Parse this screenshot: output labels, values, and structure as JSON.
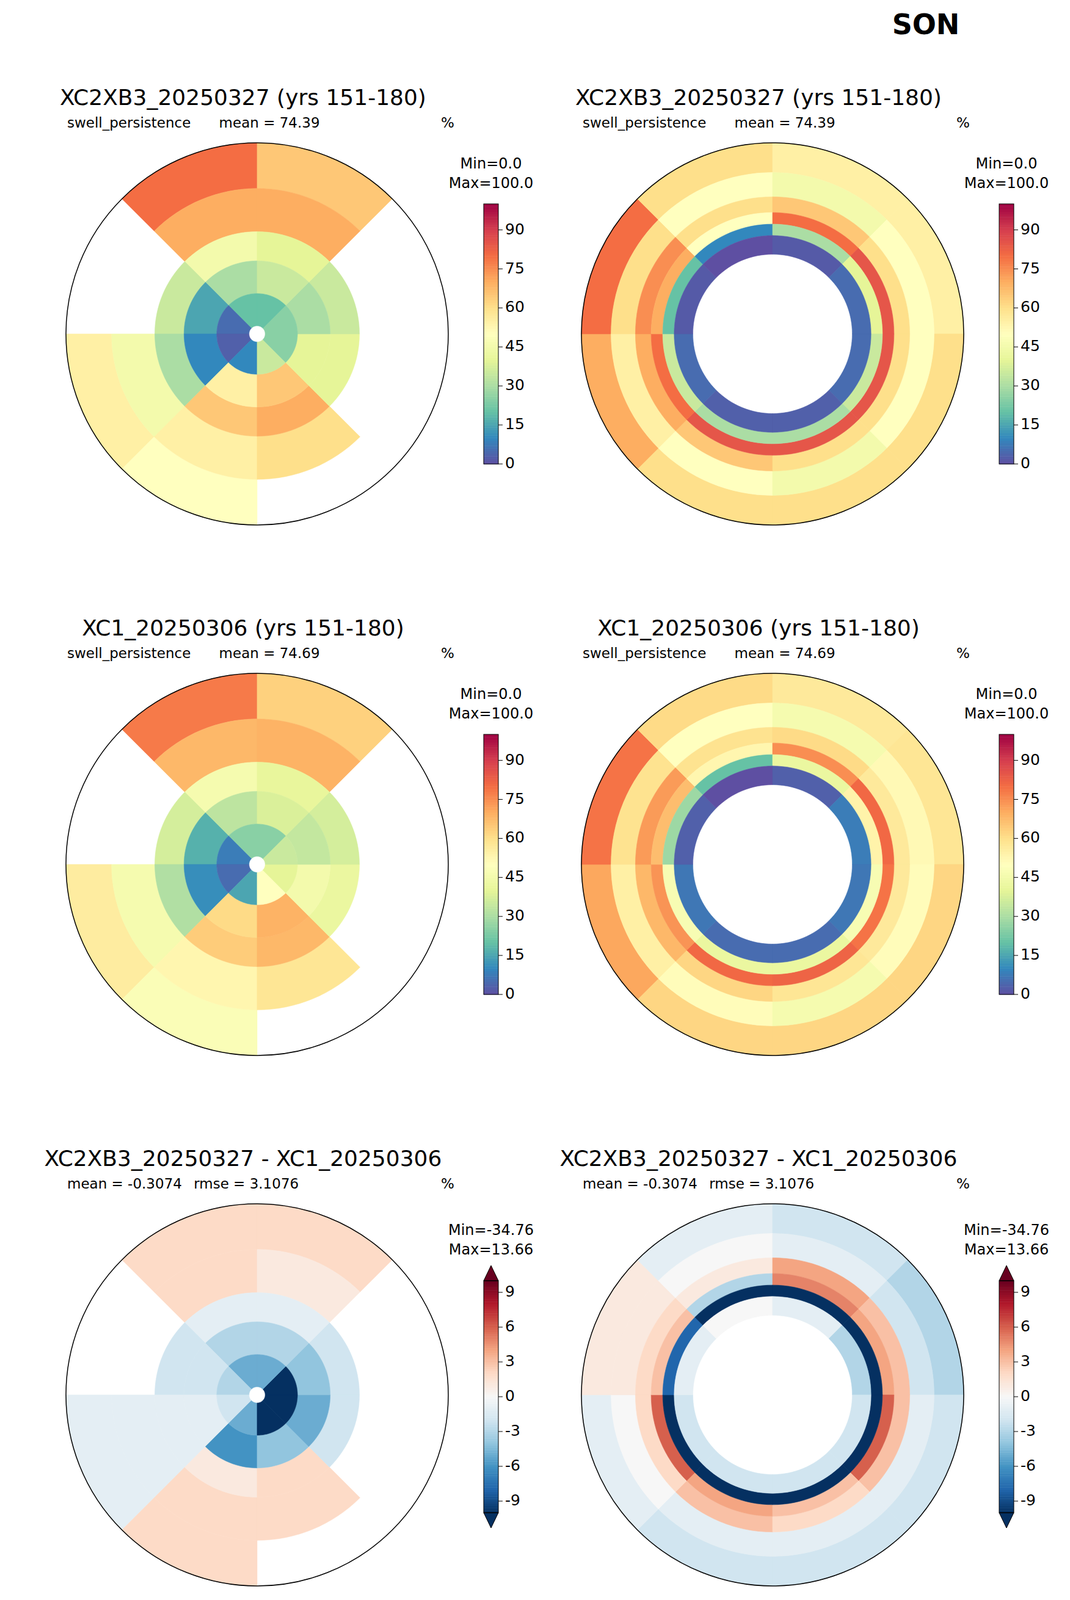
{
  "title": "SON",
  "chart_data": [
    {
      "type": "polar_map",
      "title": "XC2XB3_20250327 (yrs 151-180)",
      "variable": "swell_persistence",
      "stats": [
        "mean = 74.39"
      ],
      "units": "%",
      "colorbar": {
        "min_label": "Min=0.0",
        "max_label": "Max=100.0",
        "range": [
          0,
          100
        ],
        "ticks": [
          0,
          15,
          30,
          45,
          60,
          75,
          90
        ]
      },
      "lat_edges": [
        45,
        55,
        65,
        72,
        80,
        88,
        90
      ],
      "lon_edges": [
        -180,
        -135,
        -90,
        -45,
        0,
        45,
        90,
        135,
        180
      ],
      "values": [
        [
          80,
          null,
          55,
          50,
          null,
          null,
          null,
          65
        ],
        [
          70,
          null,
          45,
          55,
          60,
          null,
          null,
          70
        ],
        [
          45,
          35,
          30,
          65,
          70,
          40,
          35,
          40
        ],
        [
          30,
          15,
          10,
          55,
          65,
          40,
          30,
          35
        ],
        [
          20,
          5,
          3,
          10,
          35,
          25,
          25,
          20
        ],
        [
          null,
          null,
          null,
          null,
          null,
          null,
          null,
          null
        ]
      ]
    },
    {
      "type": "polar_map",
      "title": "XC2XB3_20250327 (yrs 151-180)",
      "variable": "swell_persistence",
      "stats": [
        "mean = 74.39"
      ],
      "units": "%",
      "colorbar": {
        "min_label": "Min=0.0",
        "max_label": "Max=100.0",
        "range": [
          0,
          100
        ],
        "ticks": [
          0,
          15,
          30,
          45,
          60,
          75,
          90
        ]
      },
      "lat_edges": [
        -40,
        -47,
        -53,
        -57,
        -60,
        -63,
        -68,
        -90
      ],
      "lon_edges": [
        -180,
        -135,
        -90,
        -45,
        0,
        45,
        90,
        135,
        180
      ],
      "values": [
        [
          60,
          70,
          80,
          60,
          55,
          55,
          60,
          60
        ],
        [
          50,
          55,
          60,
          50,
          45,
          50,
          50,
          45
        ],
        [
          65,
          70,
          75,
          60,
          65,
          60,
          60,
          60
        ],
        [
          85,
          80,
          70,
          50,
          80,
          85,
          85,
          85
        ],
        [
          30,
          35,
          20,
          10,
          30,
          40,
          35,
          30
        ],
        [
          3,
          5,
          2,
          0,
          2,
          5,
          5,
          3
        ],
        [
          null,
          null,
          null,
          null,
          null,
          null,
          null,
          null
        ]
      ]
    },
    {
      "type": "polar_map",
      "title": "XC1_20250306 (yrs 151-180)",
      "variable": "swell_persistence",
      "stats": [
        "mean = 74.69"
      ],
      "units": "%",
      "colorbar": {
        "min_label": "Min=0.0",
        "max_label": "Max=100.0",
        "range": [
          0,
          100
        ],
        "ticks": [
          0,
          15,
          30,
          45,
          60,
          75,
          90
        ]
      },
      "lat_edges": [
        45,
        55,
        65,
        72,
        80,
        88,
        90
      ],
      "lon_edges": [
        -180,
        -135,
        -90,
        -45,
        0,
        45,
        90,
        135,
        180
      ],
      "values": [
        [
          78,
          null,
          56,
          48,
          null,
          null,
          null,
          63
        ],
        [
          68,
          null,
          46,
          53,
          58,
          null,
          null,
          69
        ],
        [
          46,
          37,
          31,
          64,
          68,
          42,
          37,
          41
        ],
        [
          33,
          17,
          11,
          61,
          69,
          45,
          34,
          38
        ],
        [
          25,
          8,
          5,
          15,
          50,
          40,
          35,
          25
        ],
        [
          null,
          null,
          null,
          null,
          null,
          null,
          null,
          null
        ]
      ]
    },
    {
      "type": "polar_map",
      "title": "XC1_20250306 (yrs 151-180)",
      "variable": "swell_persistence",
      "stats": [
        "mean = 74.69"
      ],
      "units": "%",
      "colorbar": {
        "min_label": "Min=0.0",
        "max_label": "Max=100.0",
        "range": [
          0,
          100
        ],
        "ticks": [
          0,
          15,
          30,
          45,
          60,
          75,
          90
        ]
      },
      "lat_edges": [
        -40,
        -47,
        -53,
        -57,
        -60,
        -63,
        -68,
        -90
      ],
      "lon_edges": [
        -180,
        -135,
        -90,
        -45,
        0,
        45,
        90,
        135,
        180
      ],
      "values": [
        [
          62,
          71,
          79,
          61,
          57,
          58,
          62,
          62
        ],
        [
          51,
          55,
          59,
          50,
          46,
          52,
          51,
          46
        ],
        [
          62,
          68,
          73,
          59,
          61,
          57,
          57,
          58
        ],
        [
          81,
          74,
          67,
          53,
          75,
          81,
          79,
          82
        ],
        [
          42,
          47,
          28,
          20,
          42,
          54,
          47,
          42
        ],
        [
          5,
          7,
          3,
          0,
          3,
          8,
          7,
          5
        ],
        [
          null,
          null,
          null,
          null,
          null,
          null,
          null,
          null
        ]
      ]
    },
    {
      "type": "difference_map",
      "title": "XC2XB3_20250327 - XC1_20250306",
      "stats": [
        "mean = -0.3074",
        "rmse = 3.1076"
      ],
      "units": "%",
      "colorbar": {
        "min_label": "Min=-34.76",
        "max_label": "Max=13.66",
        "range": [
          -10,
          10
        ],
        "ticks": [
          -9,
          -6,
          -3,
          0,
          3,
          6,
          9
        ]
      },
      "lat_edges": [
        45,
        55,
        65,
        72,
        80,
        88,
        90
      ],
      "lon_edges": [
        -180,
        -135,
        -90,
        -45,
        0,
        45,
        90,
        135,
        180
      ],
      "values": [
        [
          2,
          null,
          -1,
          2,
          null,
          null,
          null,
          2
        ],
        [
          2,
          null,
          -1,
          2,
          2,
          null,
          null,
          1
        ],
        [
          -1,
          -2,
          -1,
          1,
          2,
          -2,
          -2,
          -1
        ],
        [
          -3,
          -2,
          -1,
          -6,
          -4,
          -5,
          -4,
          -3
        ],
        [
          -5,
          -3,
          -2,
          -5,
          -15,
          -15,
          -10,
          -5
        ],
        [
          null,
          null,
          null,
          null,
          null,
          null,
          null,
          null
        ]
      ]
    },
    {
      "type": "difference_map",
      "title": "XC2XB3_20250327 - XC1_20250306",
      "stats": [
        "mean = -0.3074",
        "rmse = 3.1076"
      ],
      "units": "%",
      "colorbar": {
        "min_label": "Min=-34.76",
        "max_label": "Max=13.66",
        "range": [
          -10,
          10
        ],
        "ticks": [
          -9,
          -6,
          -3,
          0,
          3,
          6,
          9
        ]
      },
      "lat_edges": [
        -40,
        -47,
        -53,
        -57,
        -60,
        -63,
        -68,
        -90
      ],
      "lon_edges": [
        -180,
        -135,
        -90,
        -45,
        0,
        45,
        90,
        135,
        180
      ],
      "values": [
        [
          -2,
          -1,
          1,
          -1,
          -2,
          -3,
          -2,
          -2
        ],
        [
          -1,
          0,
          1,
          0,
          -1,
          -2,
          -1,
          -1
        ],
        [
          3,
          2,
          2,
          1,
          4,
          3,
          3,
          2
        ],
        [
          4,
          6,
          3,
          -3,
          5,
          4,
          6,
          3
        ],
        [
          -12,
          -12,
          -8,
          -10,
          -12,
          -14,
          -12,
          -12
        ],
        [
          -2,
          -2,
          -1,
          0,
          -1,
          -3,
          -2,
          -2
        ],
        [
          null,
          null,
          null,
          null,
          null,
          null,
          null,
          null
        ]
      ]
    }
  ]
}
